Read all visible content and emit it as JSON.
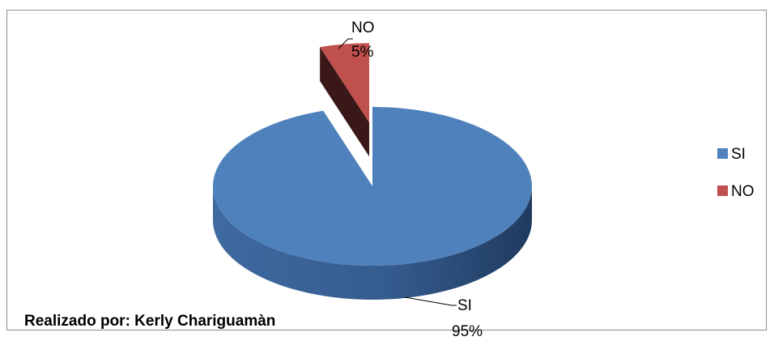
{
  "chart_data": {
    "type": "pie",
    "style": "3d-exploded",
    "categories": [
      "SI",
      "NO"
    ],
    "values": [
      95,
      5
    ],
    "data_labels": [
      {
        "category": "SI",
        "percent": "95%"
      },
      {
        "category": "NO",
        "percent": "5%"
      }
    ],
    "colors": {
      "SI": "#4F81BD",
      "NO": "#C0504D"
    },
    "legend": {
      "position": "right",
      "entries": [
        "SI",
        "NO"
      ]
    },
    "annotation": "Realizado por: Kerly Chariguamàn"
  }
}
